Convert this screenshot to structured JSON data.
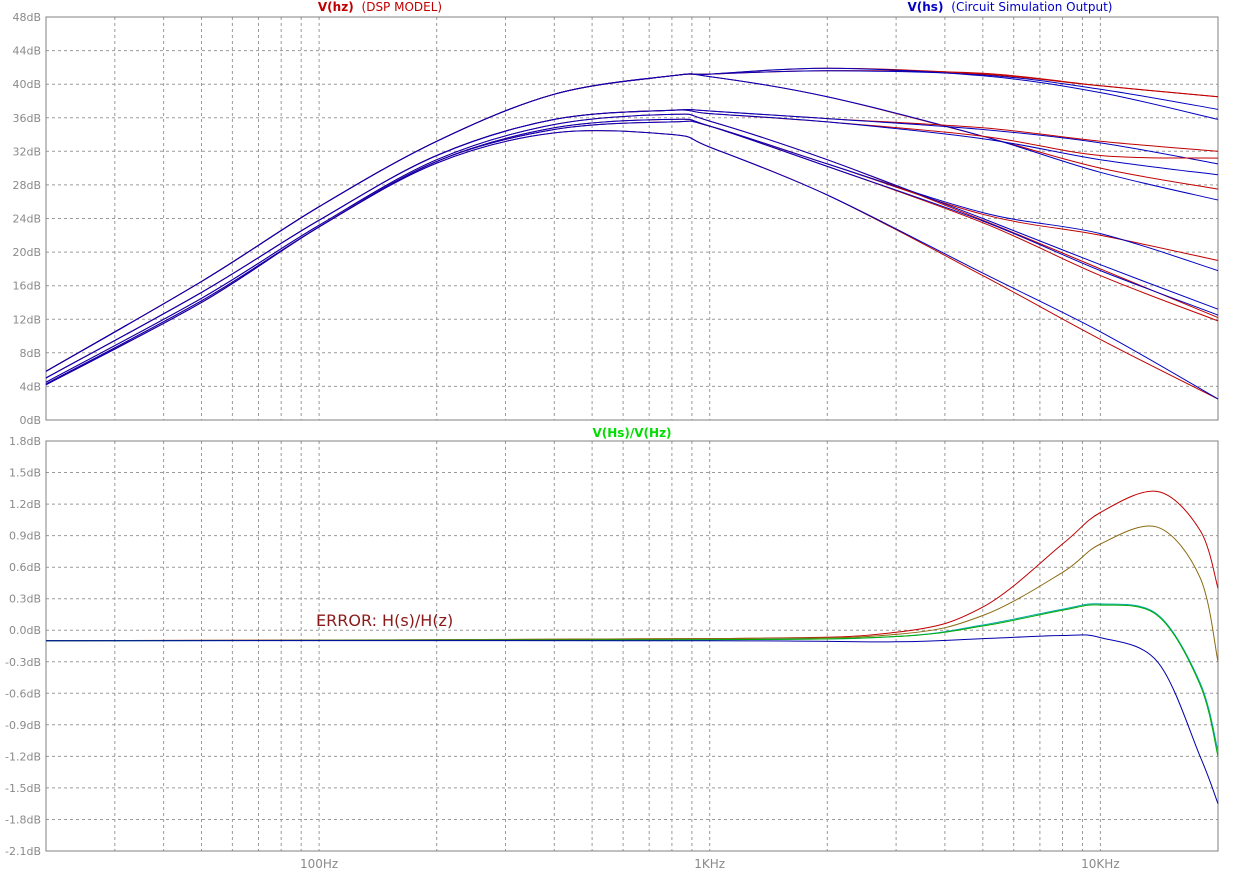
{
  "chart_data": [
    {
      "type": "line",
      "panel": "top",
      "legend": [
        {
          "name": "V(hz)",
          "desc": "(DSP MODEL)",
          "color": "#c00000"
        },
        {
          "name": "V(hs)",
          "desc": "(Circuit Simulation Output)",
          "color": "#0000c0"
        }
      ],
      "x_scale": "log",
      "xlim": [
        20,
        20000
      ],
      "ylim": [
        0,
        48
      ],
      "y_ticks": [
        "0dB",
        "4dB",
        "8dB",
        "12dB",
        "16dB",
        "20dB",
        "24dB",
        "28dB",
        "32dB",
        "36dB",
        "40dB",
        "44dB",
        "48dB"
      ],
      "grid": true,
      "series": [
        {
          "x": [
            20,
            50,
            100,
            200,
            400,
            800,
            1000,
            2000,
            5000,
            10000,
            20000
          ],
          "hz": [
            5.8,
            16.5,
            25.4,
            33.2,
            38.8,
            41.0,
            41.2,
            41.6,
            41.3,
            39.8,
            38.5
          ],
          "hs": [
            5.8,
            16.5,
            25.4,
            33.2,
            38.8,
            41.0,
            41.2,
            41.6,
            41.1,
            39.4,
            37.0
          ]
        },
        {
          "x": [
            20,
            50,
            100,
            200,
            400,
            800,
            1000,
            2000,
            5000,
            10000,
            20000
          ],
          "hz": [
            5.8,
            16.5,
            25.4,
            33.2,
            38.8,
            41.0,
            41.2,
            41.9,
            41.2,
            39.8,
            38.5
          ],
          "hs": [
            5.8,
            16.5,
            25.4,
            33.2,
            38.8,
            41.0,
            41.2,
            41.9,
            41.0,
            39.0,
            35.8
          ]
        },
        {
          "x": [
            20,
            50,
            100,
            200,
            400,
            800,
            1000,
            2000,
            5000,
            10000,
            20000
          ],
          "hz": [
            5.8,
            16.5,
            25.4,
            33.2,
            38.8,
            41.0,
            40.9,
            38.5,
            33.8,
            30.0,
            27.5
          ],
          "hs": [
            5.8,
            16.5,
            25.4,
            33.2,
            38.8,
            41.0,
            40.9,
            38.5,
            33.8,
            29.5,
            26.2
          ]
        },
        {
          "x": [
            20,
            50,
            100,
            200,
            400,
            800,
            1000,
            2000,
            5000,
            10000,
            20000
          ],
          "hz": [
            5.0,
            15.2,
            23.8,
            31.5,
            35.8,
            36.9,
            36.8,
            35.9,
            34.8,
            33.2,
            32.0
          ],
          "hs": [
            5.0,
            15.2,
            23.8,
            31.5,
            35.8,
            36.9,
            36.8,
            35.9,
            34.6,
            33.0,
            30.5
          ]
        },
        {
          "x": [
            20,
            50,
            100,
            200,
            400,
            800,
            1000,
            2000,
            5000,
            10000,
            20000
          ],
          "hz": [
            5.0,
            15.2,
            23.8,
            31.5,
            35.8,
            36.9,
            36.5,
            35.5,
            33.8,
            31.5,
            31.2
          ],
          "hs": [
            5.0,
            15.2,
            23.8,
            31.5,
            35.8,
            36.9,
            36.5,
            35.5,
            33.5,
            31.0,
            29.2
          ]
        },
        {
          "x": [
            20,
            50,
            100,
            200,
            400,
            800,
            1000,
            2000,
            5000,
            10000,
            20000
          ],
          "hz": [
            4.2,
            14.0,
            23.0,
            30.8,
            34.6,
            35.5,
            35.0,
            30.5,
            24.5,
            22.0,
            19.0
          ],
          "hs": [
            4.2,
            14.0,
            23.0,
            30.8,
            34.6,
            35.5,
            35.0,
            30.5,
            24.7,
            22.2,
            17.8
          ]
        },
        {
          "x": [
            20,
            50,
            100,
            200,
            400,
            800,
            1000,
            2000,
            5000,
            10000,
            20000
          ],
          "hz": [
            4.5,
            14.5,
            23.2,
            31.0,
            35.2,
            36.4,
            35.6,
            31.0,
            23.8,
            18.0,
            12.2
          ],
          "hs": [
            4.5,
            14.5,
            23.2,
            31.0,
            35.2,
            36.4,
            35.6,
            31.0,
            24.0,
            18.5,
            13.2
          ]
        },
        {
          "x": [
            20,
            50,
            100,
            200,
            400,
            800,
            1000,
            2000,
            5000,
            10000,
            20000
          ],
          "hz": [
            4.3,
            14.2,
            23.0,
            30.8,
            34.8,
            35.8,
            35.0,
            30.2,
            23.5,
            17.2,
            11.8
          ],
          "hs": [
            4.3,
            14.2,
            23.0,
            30.8,
            34.8,
            35.8,
            35.0,
            30.2,
            23.7,
            17.8,
            12.5
          ]
        },
        {
          "x": [
            20,
            50,
            100,
            200,
            400,
            800,
            1000,
            2000,
            5000,
            10000,
            20000
          ],
          "hz": [
            4.2,
            14.0,
            23.0,
            30.6,
            34.2,
            34.0,
            32.5,
            26.8,
            17.2,
            9.6,
            2.5
          ],
          "hs": [
            4.2,
            14.0,
            23.0,
            30.6,
            34.2,
            34.0,
            32.5,
            26.8,
            17.5,
            10.5,
            2.5
          ]
        }
      ]
    },
    {
      "type": "line",
      "panel": "bottom",
      "title": "V(Hs)/V(Hz)",
      "title_color": "#00dd00",
      "annotation": "ERROR: H(s)/H(z)",
      "x_scale": "log",
      "xlim": [
        20,
        20000
      ],
      "x_ticks": [
        "100Hz",
        "1KHz",
        "10KHz"
      ],
      "ylim": [
        -2.1,
        1.8
      ],
      "y_ticks": [
        "-2.1dB",
        "-1.8dB",
        "-1.5dB",
        "-1.2dB",
        "-0.9dB",
        "-0.6dB",
        "-0.3dB",
        "0.0dB",
        "0.3dB",
        "0.6dB",
        "0.9dB",
        "1.2dB",
        "1.5dB",
        "1.8dB"
      ],
      "grid": true,
      "series": [
        {
          "color": "#c00000",
          "x": [
            20,
            1000,
            3000,
            5000,
            8000,
            10000,
            14000,
            18000,
            20000
          ],
          "values": [
            -0.1,
            -0.08,
            -0.02,
            0.22,
            0.82,
            1.12,
            1.32,
            0.95,
            0.4
          ]
        },
        {
          "color": "#8a6a10",
          "x": [
            20,
            1000,
            3000,
            5000,
            8000,
            10000,
            14000,
            18000,
            20000
          ],
          "values": [
            -0.1,
            -0.08,
            -0.04,
            0.14,
            0.55,
            0.82,
            0.98,
            0.5,
            -0.3
          ]
        },
        {
          "color": "#00aaaa",
          "x": [
            20,
            1000,
            3000,
            5000,
            8000,
            10000,
            14000,
            18000,
            20000
          ],
          "values": [
            -0.1,
            -0.09,
            -0.06,
            0.05,
            0.2,
            0.25,
            0.15,
            -0.5,
            -1.15
          ]
        },
        {
          "color": "#00aa00",
          "x": [
            20,
            1000,
            3000,
            5000,
            8000,
            10000,
            14000,
            18000,
            20000
          ],
          "values": [
            -0.1,
            -0.09,
            -0.06,
            0.04,
            0.19,
            0.24,
            0.14,
            -0.52,
            -1.2
          ]
        },
        {
          "color": "#0000aa",
          "x": [
            20,
            1000,
            3000,
            5000,
            8000,
            10000,
            14000,
            18000,
            20000
          ],
          "values": [
            -0.1,
            -0.1,
            -0.11,
            -0.08,
            -0.05,
            -0.07,
            -0.3,
            -1.2,
            -1.65
          ]
        }
      ]
    }
  ]
}
